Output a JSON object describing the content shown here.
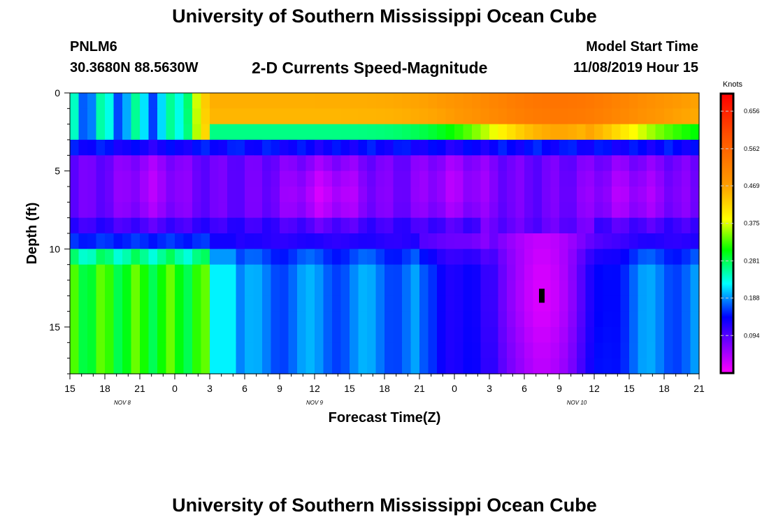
{
  "header": {
    "title": "University of Southern Mississippi Ocean Cube",
    "station_id": "PNLM6",
    "station_location": "30.3680N 88.5630W",
    "start_label": "Model Start Time",
    "start_value": "11/08/2019 Hour 15"
  },
  "footer": {
    "title": "University of Southern Mississippi Ocean Cube"
  },
  "chart_data": {
    "type": "heatmap",
    "title": "2-D Currents Speed-Magnitude",
    "xlabel": "Forecast Time(Z)",
    "ylabel": "Depth (ft)",
    "x_ticks": [
      "15",
      "18",
      "21",
      "0",
      "3",
      "6",
      "9",
      "12",
      "15",
      "18",
      "21",
      "0",
      "3",
      "6",
      "9",
      "12",
      "15",
      "18",
      "21"
    ],
    "x_tick_hours": [
      0,
      3,
      6,
      9,
      12,
      15,
      18,
      21,
      24,
      27,
      30,
      33,
      36,
      39,
      42,
      45,
      48,
      51,
      54
    ],
    "x_range_hours": [
      0,
      54
    ],
    "date_labels": [
      {
        "text": "NOV  8",
        "hour": 4.5
      },
      {
        "text": "NOV  9",
        "hour": 21
      },
      {
        "text": "NOV  10",
        "hour": 43.5
      }
    ],
    "y_ticks": [
      0,
      5,
      10,
      15
    ],
    "y_range_ft": [
      0,
      18
    ],
    "colorbar": {
      "label": "Knots",
      "min": 0.0,
      "max": 0.7,
      "ticks": [
        "0.656",
        "0.562",
        "0.469",
        "0.375",
        "0.281",
        "0.188",
        "0.094"
      ],
      "tick_values": [
        0.656,
        0.562,
        0.469,
        0.375,
        0.281,
        0.188,
        0.094
      ]
    },
    "value_summary": [
      {
        "region": "surface layer 0-3 ft",
        "hours": [
          12,
          54
        ],
        "knots": 0.48
      },
      {
        "region": "surface layer 0-3 ft",
        "hours": [
          0,
          12
        ],
        "knots": 0.22
      },
      {
        "region": "mid layer 4-8 ft",
        "hours": [
          0,
          54
        ],
        "knots": 0.07
      },
      {
        "region": "lower layer 11-17 ft",
        "hours": [
          0,
          12
        ],
        "knots": 0.3
      },
      {
        "region": "lower layer 11-17 ft",
        "hours": [
          14,
          33
        ],
        "knots": 0.19
      },
      {
        "region": "lower layer 9-18 ft",
        "hours": [
          36,
          44
        ],
        "knots": 0.03
      }
    ],
    "marker": {
      "hour": 40.5,
      "depth_ft": 13
    }
  }
}
